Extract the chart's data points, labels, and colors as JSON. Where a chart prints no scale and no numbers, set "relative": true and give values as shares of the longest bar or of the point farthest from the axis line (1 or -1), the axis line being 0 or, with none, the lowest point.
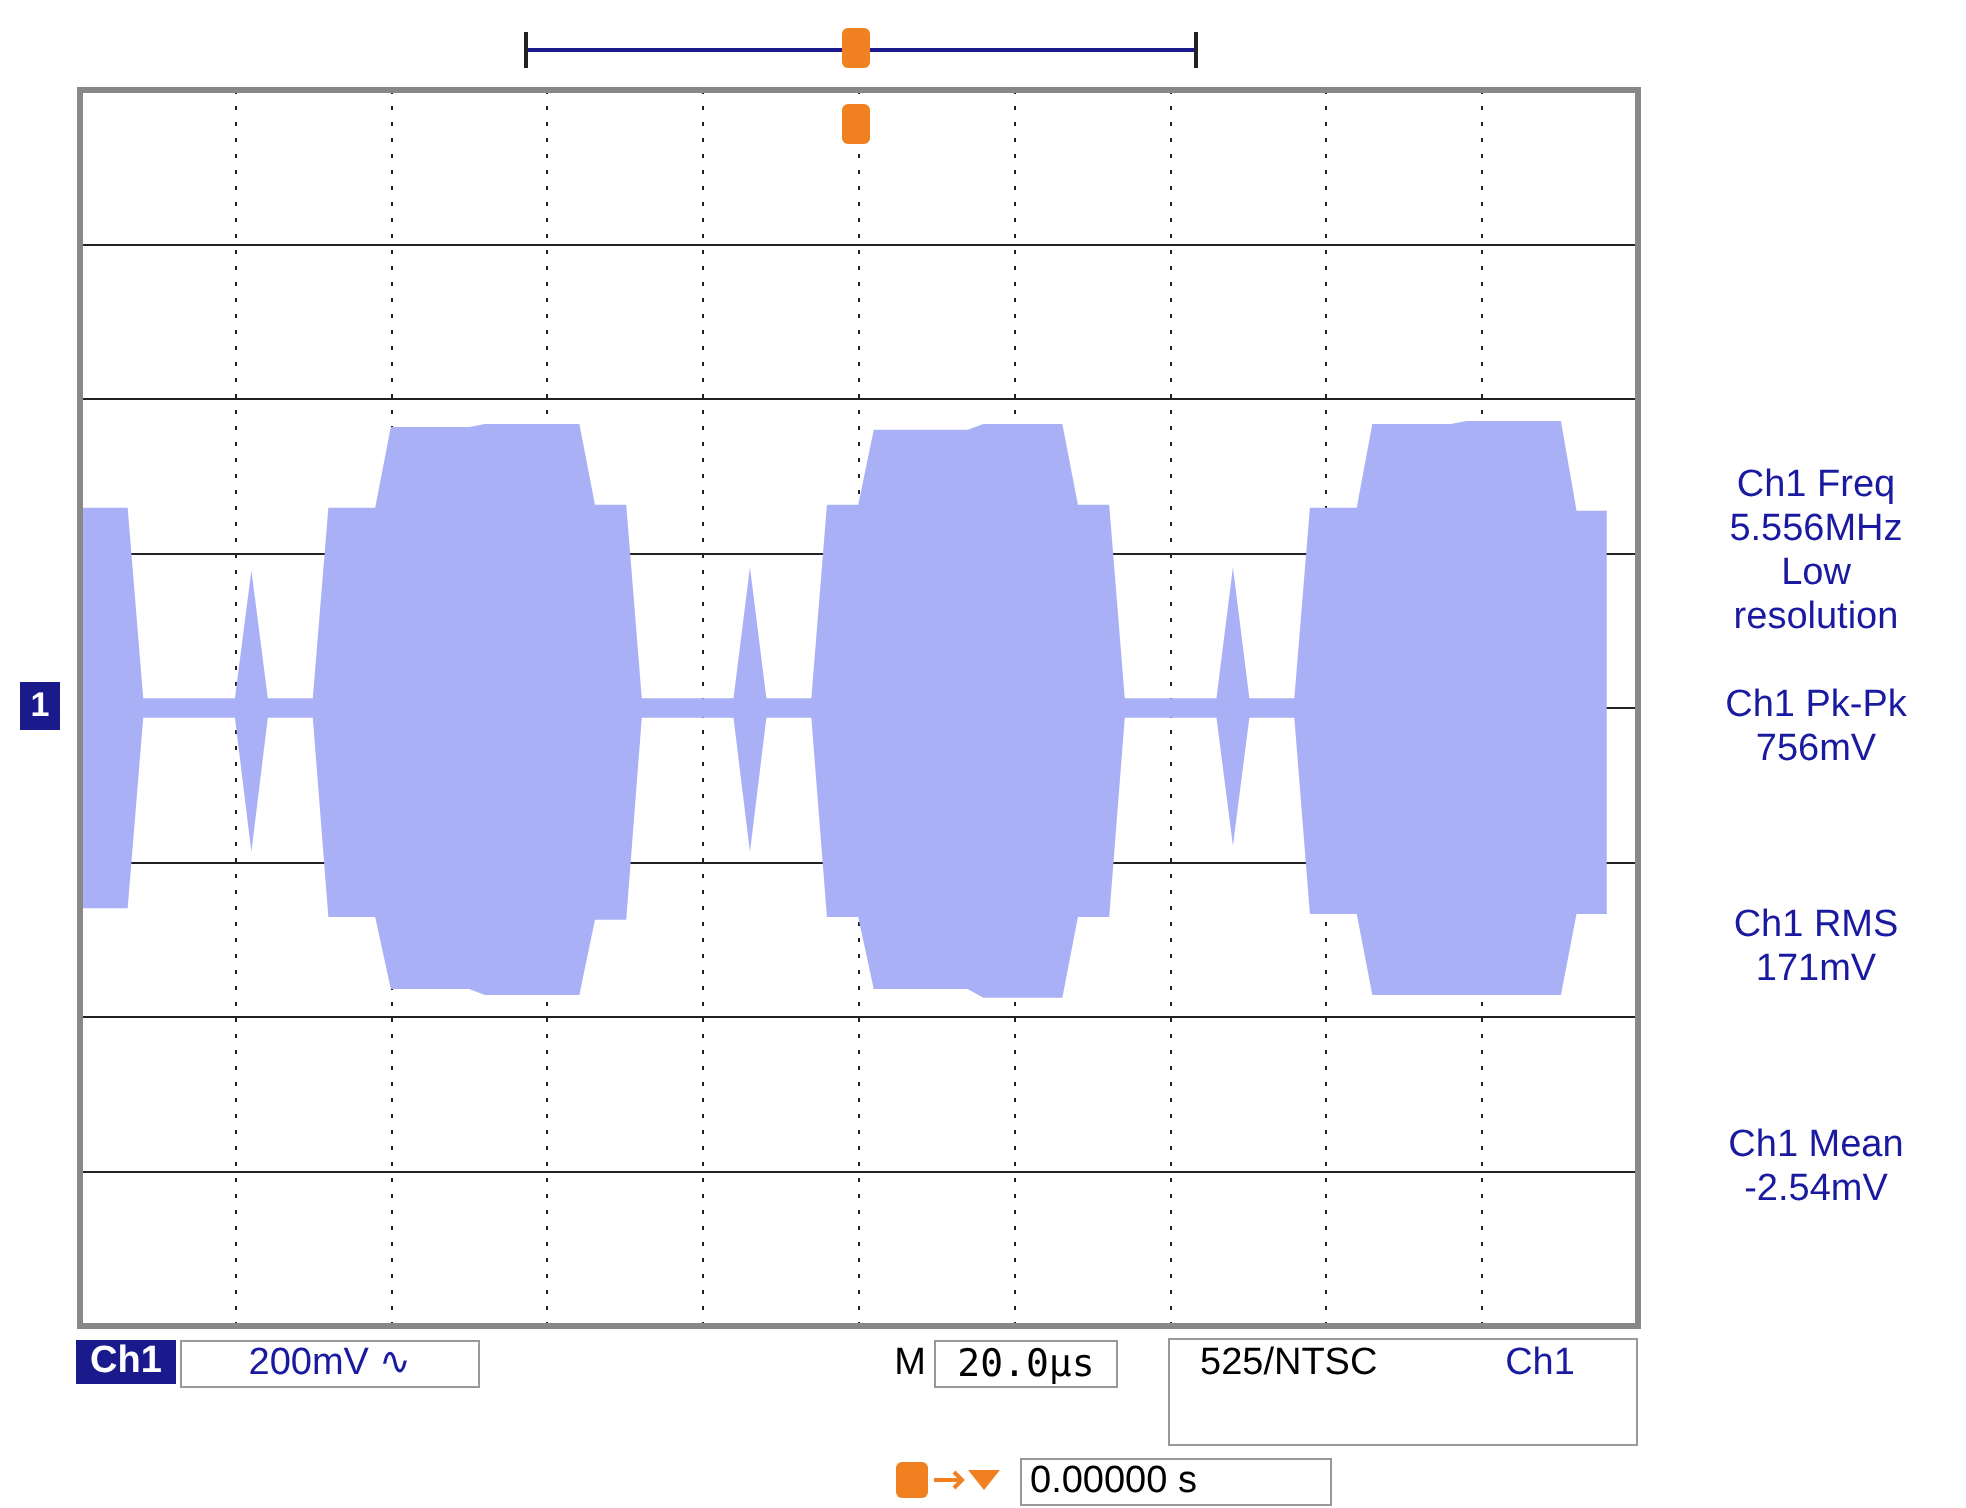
{
  "chart_data": {
    "type": "area",
    "relative": true,
    "grid": true,
    "tick_labels": false,
    "legend": false,
    "categories": [
      null,
      null,
      null,
      null,
      null,
      null,
      null,
      null,
      null,
      null,
      null,
      null,
      null,
      null,
      null,
      null,
      null,
      null,
      null,
      null,
      null,
      null,
      null,
      null,
      null,
      null,
      null,
      null,
      null,
      null,
      null,
      null,
      null,
      null,
      null,
      null,
      null,
      null,
      null,
      null,
      null,
      null,
      null,
      null,
      null,
      null,
      null,
      null,
      null,
      null,
      null,
      null,
      null,
      null,
      null,
      null,
      null,
      null,
      null,
      null,
      null,
      null,
      null,
      null,
      null,
      null,
      null,
      null,
      null,
      null,
      null,
      null,
      null,
      null,
      null,
      null,
      null,
      null,
      null,
      null,
      null,
      null,
      null,
      null,
      null,
      null,
      null,
      null,
      null,
      null,
      null,
      null,
      null,
      null,
      null,
      null,
      null,
      null,
      null,
      null,
      null
    ],
    "series": [
      {
        "color": "#aab0f6",
        "values": [
          0.69,
          0.69,
          0.69,
          0.69,
          0.03,
          0.03,
          0.03,
          0.03,
          0.03,
          0.03,
          0.03,
          0.45,
          0.03,
          0.03,
          0.03,
          0.03,
          0.69,
          0.69,
          0.69,
          0.69,
          0.97,
          0.97,
          0.97,
          0.97,
          0.97,
          0.97,
          0.98,
          0.98,
          0.98,
          0.98,
          0.98,
          0.98,
          0.98,
          0.7,
          0.7,
          0.7,
          0.03,
          0.03,
          0.03,
          0.03,
          0.03,
          0.03,
          0.03,
          0.46,
          0.03,
          0.03,
          0.03,
          0.03,
          0.7,
          0.7,
          0.7,
          0.96,
          0.96,
          0.96,
          0.96,
          0.96,
          0.96,
          0.96,
          0.98,
          0.98,
          0.98,
          0.98,
          0.98,
          0.98,
          0.7,
          0.7,
          0.7,
          0.03,
          0.03,
          0.03,
          0.03,
          0.03,
          0.03,
          0.03,
          0.46,
          0.03,
          0.03,
          0.03,
          0.03,
          0.69,
          0.69,
          0.69,
          0.69,
          0.98,
          0.98,
          0.98,
          0.98,
          0.98,
          0.98,
          0.99,
          0.99,
          0.99,
          0.99,
          0.99,
          0.99,
          0.99,
          0.68,
          0.68,
          0.68,
          null,
          null
        ]
      },
      {
        "color": "#aab0f6",
        "values": [
          -0.69,
          -0.69,
          -0.69,
          -0.69,
          -0.03,
          -0.03,
          -0.03,
          -0.03,
          -0.03,
          -0.03,
          -0.03,
          -0.47,
          -0.03,
          -0.03,
          -0.03,
          -0.03,
          -0.72,
          -0.72,
          -0.72,
          -0.72,
          -0.97,
          -0.97,
          -0.97,
          -0.97,
          -0.97,
          -0.97,
          -0.99,
          -0.99,
          -0.99,
          -0.99,
          -0.99,
          -0.99,
          -0.99,
          -0.73,
          -0.73,
          -0.73,
          -0.03,
          -0.03,
          -0.03,
          -0.03,
          -0.03,
          -0.03,
          -0.03,
          -0.47,
          -0.03,
          -0.03,
          -0.03,
          -0.03,
          -0.72,
          -0.72,
          -0.72,
          -0.97,
          -0.97,
          -0.97,
          -0.97,
          -0.97,
          -0.97,
          -0.97,
          -1,
          -1,
          -1,
          -1,
          -1,
          -1,
          -0.72,
          -0.72,
          -0.72,
          -0.03,
          -0.03,
          -0.03,
          -0.03,
          -0.03,
          -0.03,
          -0.03,
          -0.45,
          -0.03,
          -0.03,
          -0.03,
          -0.03,
          -0.71,
          -0.71,
          -0.71,
          -0.71,
          -0.99,
          -0.99,
          -0.99,
          -0.99,
          -0.99,
          -0.99,
          -0.99,
          -0.99,
          -0.99,
          -0.99,
          -0.99,
          -0.99,
          -0.99,
          -0.71,
          -0.71,
          -0.71,
          null,
          null
        ]
      }
    ],
    "annotations": [
      "1",
      "Ch1 Freq\n5.556MHz\nLow\nresolution",
      "Ch1 Pk-Pk\n756mV",
      "Ch1 RMS\n171mV",
      "Ch1 Mean\n-2.54mV",
      "Ch1",
      "200mV ∿",
      "M",
      "20.0µs",
      "525/NTSC",
      "Ch1",
      "0.00000 s"
    ]
  }
}
